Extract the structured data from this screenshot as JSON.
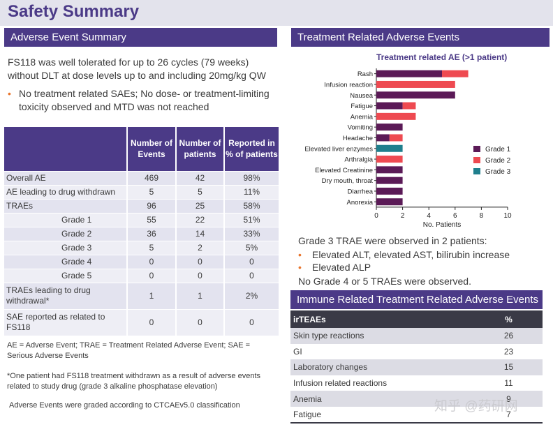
{
  "page_title": "Safety Summary",
  "left_panel": {
    "header": "Adverse Event Summary",
    "intro": "FS118 was well tolerated for up to 26 cycles (79 weeks) without DLT at dose levels up to and including 20mg/kg QW",
    "bullet": "No treatment related SAEs; No dose- or treatment-limiting toxicity observed and MTD was not reached",
    "table": {
      "headers": [
        "",
        "Number of Events",
        "Number of patients",
        "Reported in % of patients"
      ],
      "rows": [
        {
          "label": "Overall AE",
          "events": "469",
          "patients": "42",
          "pct": "98%"
        },
        {
          "label": "AE leading to drug withdrawn",
          "events": "5",
          "patients": "5",
          "pct": "11%"
        },
        {
          "label": "TRAEs",
          "events": "96",
          "patients": "25",
          "pct": "58%"
        },
        {
          "label": "Grade 1",
          "events": "55",
          "patients": "22",
          "pct": "51%"
        },
        {
          "label": "Grade 2",
          "events": "36",
          "patients": "14",
          "pct": "33%"
        },
        {
          "label": "Grade 3",
          "events": "5",
          "patients": "2",
          "pct": "5%"
        },
        {
          "label": "Grade 4",
          "events": "0",
          "patients": "0",
          "pct": "0"
        },
        {
          "label": "Grade 5",
          "events": "0",
          "patients": "0",
          "pct": "0"
        },
        {
          "label": "TRAEs leading to drug withdrawal*",
          "events": "1",
          "patients": "1",
          "pct": "2%"
        },
        {
          "label": "SAE reported as related to FS118",
          "events": "0",
          "patients": "0",
          "pct": "0"
        }
      ]
    },
    "footnotes": [
      "AE = Adverse Event; TRAE = Treatment Related Adverse Event; SAE = Serious Adverse Events",
      "*One patient had FS118 treatment withdrawn as a result of adverse events related to study drug (grade 3 alkaline phosphatase elevation)",
      "Adverse Events were graded according to CTCAEv5.0 classification"
    ]
  },
  "right_panel": {
    "header": "Treatment Related Adverse Events",
    "grade3_intro": "Grade 3 TRAE were observed  in 2 patients:",
    "grade3_bullets": [
      "Elevated ALT, elevated AST, bilirubin increase",
      "Elevated ALP"
    ],
    "no_grade45": "No Grade 4 or 5 TRAEs were observed.",
    "ir_header": "Immune Related Treatment Related Adverse Events",
    "ir_table": {
      "headers": [
        "irTEAEs",
        "%"
      ],
      "rows": [
        {
          "label": "Skin type reactions",
          "pct": "26"
        },
        {
          "label": "GI",
          "pct": "23"
        },
        {
          "label": "Laboratory changes",
          "pct": "15"
        },
        {
          "label": "Infusion related reactions",
          "pct": "11"
        },
        {
          "label": "Anemia",
          "pct": "9"
        },
        {
          "label": "Fatigue",
          "pct": "7"
        }
      ]
    }
  },
  "chart_data": {
    "type": "bar",
    "orientation": "horizontal",
    "stacked": true,
    "title": "Treatment related AE (>1 patient)",
    "xlabel": "No. Patients",
    "ylabel": "",
    "xlim": [
      0,
      10
    ],
    "xticks": [
      "0",
      "2",
      "4",
      "6",
      "8",
      "10"
    ],
    "categories": [
      "Rash",
      "Infusion reaction",
      "Nausea",
      "Fatigue",
      "Anemia",
      "Vomiting",
      "Headache",
      "Elevated liver enzymes",
      "Arthralgia",
      "Elevated Creatinine",
      "Dry mouth, throat",
      "Diarrhea",
      "Anorexia"
    ],
    "series": [
      {
        "name": "Grade 1",
        "color": "#5b1a57",
        "values": [
          5,
          0,
          6,
          2,
          0,
          2,
          1,
          0,
          0,
          2,
          2,
          2,
          2
        ]
      },
      {
        "name": "Grade 2",
        "color": "#ee4a51",
        "values": [
          2,
          6,
          0,
          1,
          3,
          0,
          1,
          0,
          2,
          0,
          0,
          0,
          0
        ]
      },
      {
        "name": "Grade 3",
        "color": "#1f7f8d",
        "values": [
          0,
          0,
          0,
          0,
          0,
          0,
          0,
          2,
          0,
          0,
          0,
          0,
          0
        ]
      }
    ],
    "legend_position": "right"
  },
  "watermark": "知乎 @药研网",
  "colors": {
    "brand": "#4b3a87",
    "accent": "#e8742b",
    "header_dark": "#3a3a46"
  }
}
